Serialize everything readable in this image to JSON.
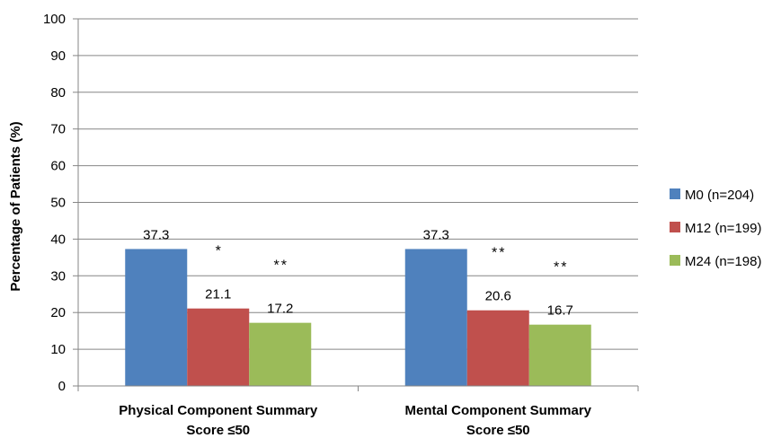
{
  "chart_data": {
    "type": "bar",
    "title": "",
    "xlabel": "",
    "ylabel": "Percentage of Patients (%)",
    "ylim": [
      0,
      100
    ],
    "yticks": [
      0,
      10,
      20,
      30,
      40,
      50,
      60,
      70,
      80,
      90,
      100
    ],
    "grid": true,
    "legend_position": "right",
    "categories": [
      [
        "Physical Component Summary",
        "Score ≤50"
      ],
      [
        "Mental Component Summary",
        "Score ≤50"
      ]
    ],
    "series": [
      {
        "name": "M0 (n=204)",
        "color": "#4F81BD",
        "values": [
          37.3,
          37.3
        ],
        "value_labels": [
          "37.3",
          "37.3"
        ],
        "significance": [
          "",
          ""
        ]
      },
      {
        "name": "M12 (n=199)",
        "color": "#C0504D",
        "values": [
          21.1,
          20.6
        ],
        "value_labels": [
          "21.1",
          "20.6"
        ],
        "significance": [
          "*",
          "**"
        ]
      },
      {
        "name": "M24 (n=198)",
        "color": "#9BBB59",
        "values": [
          17.2,
          16.7
        ],
        "value_labels": [
          "17.2",
          "16.7"
        ],
        "significance": [
          "**",
          "**"
        ]
      }
    ]
  }
}
